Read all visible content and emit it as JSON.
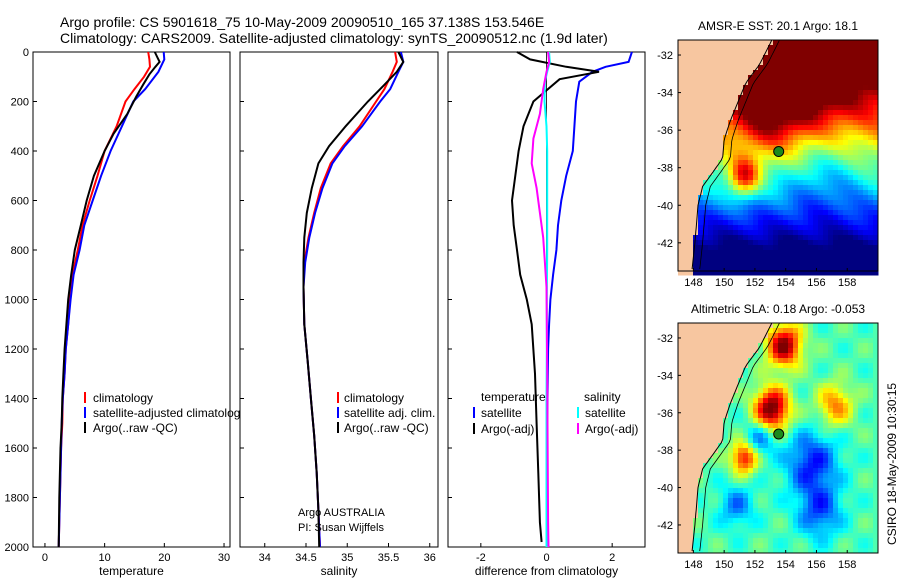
{
  "header": {
    "line1": "Argo profile: CS 5901618_75 10-May-2009 20090510_165 37.138S 153.546E",
    "line2": "Climatology: CARS2009. Satellite-adjusted climatology: synTS_20090512.nc (1.9d later)"
  },
  "side_label": "CSIRO 18-May-2009 10:30:15",
  "colors": {
    "climatology": "#ff0000",
    "satellite": "#0000ff",
    "argo": "#000000",
    "salinity_sat": "#00ffff",
    "argo_adj": "#ff00ff",
    "land": "#f7c6a0"
  },
  "chart_data": [
    {
      "type": "line",
      "id": "temperature",
      "xlabel": "temperature",
      "ylabel": "",
      "xlim": [
        -2,
        31
      ],
      "ylim": [
        2000,
        0
      ],
      "xticks": [
        0,
        10,
        20,
        30
      ],
      "yticks": [
        0,
        200,
        400,
        600,
        800,
        1000,
        1200,
        1400,
        1600,
        1800,
        2000
      ],
      "legend": {
        "placement": "bottom-left",
        "entries": [
          "climatology",
          "satellite-adjusted climatology",
          "Argo(..raw -QC)"
        ]
      },
      "series": [
        {
          "name": "climatology",
          "color": "#ff0000",
          "points": [
            [
              17.3,
              0
            ],
            [
              17.5,
              30
            ],
            [
              17.6,
              60
            ],
            [
              16.6,
              100
            ],
            [
              15.0,
              150
            ],
            [
              13.5,
              200
            ],
            [
              12.0,
              300
            ],
            [
              10.0,
              400
            ],
            [
              8.8,
              500
            ],
            [
              7.5,
              600
            ],
            [
              6.3,
              700
            ],
            [
              5.5,
              800
            ],
            [
              4.6,
              900
            ],
            [
              4.2,
              1000
            ],
            [
              3.9,
              1100
            ],
            [
              3.5,
              1200
            ],
            [
              3.3,
              1300
            ],
            [
              3.0,
              1400
            ],
            [
              2.9,
              1500
            ],
            [
              2.7,
              1600
            ],
            [
              2.6,
              1700
            ],
            [
              2.5,
              1800
            ],
            [
              2.4,
              1900
            ],
            [
              2.3,
              2000
            ]
          ]
        },
        {
          "name": "satellite-adjusted climatology",
          "color": "#0000ff",
          "points": [
            [
              19.9,
              0
            ],
            [
              20.0,
              30
            ],
            [
              19.0,
              80
            ],
            [
              16.8,
              150
            ],
            [
              14.8,
              200
            ],
            [
              12.9,
              300
            ],
            [
              11.0,
              400
            ],
            [
              9.4,
              500
            ],
            [
              8.0,
              600
            ],
            [
              6.6,
              700
            ],
            [
              5.8,
              800
            ],
            [
              4.8,
              900
            ],
            [
              4.3,
              1000
            ],
            [
              3.9,
              1100
            ],
            [
              3.5,
              1200
            ],
            [
              3.3,
              1300
            ],
            [
              3.0,
              1400
            ],
            [
              2.8,
              1500
            ],
            [
              2.7,
              1600
            ],
            [
              2.6,
              1700
            ],
            [
              2.5,
              1800
            ],
            [
              2.4,
              1900
            ],
            [
              2.3,
              2000
            ]
          ]
        },
        {
          "name": "Argo(..raw -QC)",
          "color": "#000000",
          "points": [
            [
              18.4,
              0
            ],
            [
              18.8,
              20
            ],
            [
              19.2,
              40
            ],
            [
              18.5,
              60
            ],
            [
              17.5,
              90
            ],
            [
              16.5,
              130
            ],
            [
              15.3,
              180
            ],
            [
              13.8,
              250
            ],
            [
              11.5,
              330
            ],
            [
              10.0,
              400
            ],
            [
              8.2,
              500
            ],
            [
              7.0,
              600
            ],
            [
              6.0,
              700
            ],
            [
              5.0,
              800
            ],
            [
              4.4,
              900
            ],
            [
              3.9,
              1000
            ],
            [
              3.6,
              1100
            ],
            [
              3.3,
              1200
            ],
            [
              3.1,
              1300
            ],
            [
              2.9,
              1400
            ],
            [
              2.8,
              1500
            ],
            [
              2.6,
              1600
            ],
            [
              2.5,
              1700
            ],
            [
              2.4,
              1800
            ],
            [
              2.35,
              1900
            ],
            [
              2.3,
              2000
            ]
          ]
        }
      ]
    },
    {
      "type": "line",
      "id": "salinity",
      "xlabel": "salinity",
      "ylabel": "",
      "xlim": [
        33.7,
        36.1
      ],
      "ylim": [
        2000,
        0
      ],
      "xticks": [
        34,
        34.5,
        35,
        35.5,
        36
      ],
      "xticklabels": [
        "34",
        "34.5",
        "35",
        "35.5",
        "36"
      ],
      "legend": {
        "placement": "bottom-left",
        "entries": [
          "climatology",
          "satellite adj. clim.",
          "Argo(..raw -QC)"
        ]
      },
      "annotation": {
        "line1": "Argo AUSTRALIA",
        "line2": "PI: Susan Wijffels"
      },
      "series": [
        {
          "name": "climatology",
          "color": "#ff0000",
          "points": [
            [
              35.58,
              0
            ],
            [
              35.6,
              40
            ],
            [
              35.55,
              80
            ],
            [
              35.45,
              150
            ],
            [
              35.35,
              200
            ],
            [
              35.15,
              300
            ],
            [
              34.95,
              380
            ],
            [
              34.8,
              450
            ],
            [
              34.68,
              550
            ],
            [
              34.6,
              650
            ],
            [
              34.53,
              750
            ],
            [
              34.48,
              850
            ],
            [
              34.47,
              950
            ],
            [
              34.48,
              1100
            ],
            [
              34.52,
              1250
            ],
            [
              34.56,
              1400
            ],
            [
              34.6,
              1550
            ],
            [
              34.63,
              1700
            ],
            [
              34.65,
              1850
            ],
            [
              34.67,
              2000
            ]
          ]
        },
        {
          "name": "satellite adj. clim.",
          "color": "#0000ff",
          "points": [
            [
              35.65,
              0
            ],
            [
              35.68,
              40
            ],
            [
              35.62,
              80
            ],
            [
              35.52,
              150
            ],
            [
              35.4,
              200
            ],
            [
              35.18,
              300
            ],
            [
              34.97,
              380
            ],
            [
              34.82,
              450
            ],
            [
              34.7,
              550
            ],
            [
              34.61,
              650
            ],
            [
              34.54,
              750
            ],
            [
              34.49,
              850
            ],
            [
              34.47,
              950
            ],
            [
              34.48,
              1100
            ],
            [
              34.52,
              1250
            ],
            [
              34.56,
              1400
            ],
            [
              34.6,
              1550
            ],
            [
              34.63,
              1700
            ],
            [
              34.65,
              1850
            ],
            [
              34.67,
              2000
            ]
          ]
        },
        {
          "name": "Argo(..raw -QC)",
          "color": "#000000",
          "points": [
            [
              35.62,
              0
            ],
            [
              35.68,
              40
            ],
            [
              35.6,
              80
            ],
            [
              35.4,
              150
            ],
            [
              35.25,
              200
            ],
            [
              34.98,
              300
            ],
            [
              34.78,
              380
            ],
            [
              34.65,
              450
            ],
            [
              34.57,
              550
            ],
            [
              34.51,
              650
            ],
            [
              34.48,
              750
            ],
            [
              34.47,
              850
            ],
            [
              34.47,
              950
            ],
            [
              34.48,
              1100
            ],
            [
              34.52,
              1250
            ],
            [
              34.56,
              1400
            ],
            [
              34.6,
              1550
            ],
            [
              34.63,
              1700
            ],
            [
              34.65,
              1850
            ],
            [
              34.66,
              2000
            ]
          ]
        }
      ]
    },
    {
      "type": "line",
      "id": "difference",
      "xlabel": "difference from climatology",
      "ylabel": "",
      "xlim": [
        -3,
        3
      ],
      "ylim": [
        2000,
        0
      ],
      "xticks": [
        -2,
        0,
        2
      ],
      "legend": {
        "placement": "bottom",
        "headers": [
          "temperature",
          "salinity"
        ],
        "entries": [
          "satellite",
          "Argo(-adj)",
          "satellite",
          "Argo(-adj)"
        ]
      },
      "series": [
        {
          "name": "temperature satellite",
          "color": "#0000ff",
          "points": [
            [
              2.6,
              0
            ],
            [
              2.5,
              40
            ],
            [
              1.8,
              60
            ],
            [
              1.4,
              80
            ],
            [
              1.0,
              120
            ],
            [
              0.9,
              200
            ],
            [
              0.85,
              300
            ],
            [
              0.8,
              400
            ],
            [
              0.6,
              500
            ],
            [
              0.45,
              600
            ],
            [
              0.35,
              700
            ],
            [
              0.3,
              800
            ],
            [
              0.2,
              900
            ],
            [
              0.12,
              1000
            ],
            [
              0.08,
              1100
            ],
            [
              0.05,
              1200
            ],
            [
              0.03,
              1400
            ],
            [
              0.02,
              1600
            ],
            [
              0.01,
              1800
            ],
            [
              0.0,
              2000
            ]
          ]
        },
        {
          "name": "temperature Argo(-adj)",
          "color": "#000000",
          "points": [
            [
              -0.9,
              0
            ],
            [
              -0.5,
              30
            ],
            [
              0.6,
              60
            ],
            [
              1.6,
              80
            ],
            [
              0.4,
              110
            ],
            [
              -0.4,
              200
            ],
            [
              -0.7,
              300
            ],
            [
              -0.85,
              400
            ],
            [
              -0.95,
              500
            ],
            [
              -1.05,
              600
            ],
            [
              -1.0,
              700
            ],
            [
              -0.9,
              800
            ],
            [
              -0.8,
              900
            ],
            [
              -0.6,
              1000
            ],
            [
              -0.45,
              1100
            ],
            [
              -0.35,
              1300
            ],
            [
              -0.3,
              1500
            ],
            [
              -0.25,
              1700
            ],
            [
              -0.2,
              1900
            ],
            [
              -0.15,
              1980
            ]
          ]
        },
        {
          "name": "salinity satellite",
          "color": "#00ffff",
          "points": [
            [
              0.08,
              0
            ],
            [
              0.1,
              40
            ],
            [
              0.02,
              80
            ],
            [
              -0.05,
              120
            ],
            [
              -0.06,
              200
            ],
            [
              0.0,
              300
            ],
            [
              0.02,
              400
            ],
            [
              0.02,
              600
            ],
            [
              0.02,
              800
            ],
            [
              0.01,
              1000
            ],
            [
              0.01,
              1200
            ],
            [
              0.0,
              1400
            ],
            [
              0.0,
              1600
            ],
            [
              0.0,
              1800
            ],
            [
              0.0,
              2000
            ]
          ]
        },
        {
          "name": "salinity Argo(-adj)",
          "color": "#ff00ff",
          "points": [
            [
              0.05,
              0
            ],
            [
              0.08,
              40
            ],
            [
              0.0,
              80
            ],
            [
              -0.1,
              150
            ],
            [
              -0.2,
              250
            ],
            [
              -0.4,
              350
            ],
            [
              -0.45,
              450
            ],
            [
              -0.3,
              550
            ],
            [
              -0.2,
              650
            ],
            [
              -0.1,
              750
            ],
            [
              -0.05,
              850
            ],
            [
              0.0,
              950
            ],
            [
              0.01,
              1100
            ],
            [
              0.02,
              1300
            ],
            [
              0.03,
              1500
            ],
            [
              0.04,
              1700
            ],
            [
              0.05,
              1900
            ],
            [
              0.06,
              2000
            ]
          ]
        }
      ]
    },
    {
      "type": "heatmap",
      "id": "sst_map",
      "title": "AMSR-E SST: 20.1 Argo: 18.1",
      "xlim": [
        147,
        160
      ],
      "ylim": [
        -43.5,
        -31.2
      ],
      "xticks": [
        148,
        150,
        152,
        154,
        156,
        158
      ],
      "yticks": [
        -32,
        -34,
        -36,
        -38,
        -40,
        -42
      ],
      "profile_location": [
        153.546,
        -37.138
      ]
    },
    {
      "type": "heatmap",
      "id": "sla_map",
      "title": "Altimetric SLA: 0.18 Argo: -0.053",
      "xlim": [
        147,
        160
      ],
      "ylim": [
        -43.5,
        -31.2
      ],
      "xticks": [
        148,
        150,
        152,
        154,
        156,
        158
      ],
      "yticks": [
        -32,
        -34,
        -36,
        -38,
        -40,
        -42
      ],
      "profile_location": [
        153.546,
        -37.138
      ]
    }
  ]
}
